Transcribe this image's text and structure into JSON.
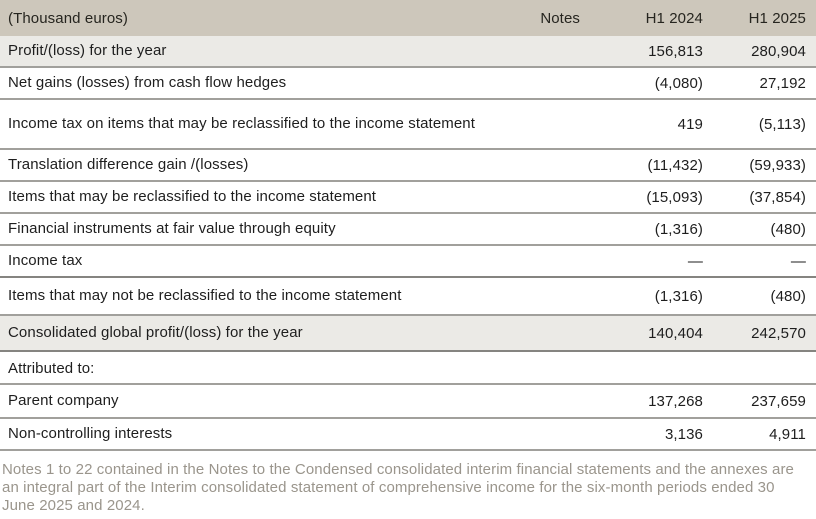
{
  "colors": {
    "header_bg": "#cdc7bb",
    "shaded_row_bg": "#ebeae6",
    "row_border": "#a1a09c",
    "section_border": "#858480",
    "text": "#1e1e1e",
    "footnote_text": "#9a958c"
  },
  "table": {
    "columns": [
      "(Thousand euros)",
      "Notes",
      "H1 2024",
      "H1 2025"
    ],
    "rows": [
      {
        "label": "Profit/(loss) for the year",
        "notes": "",
        "h1_2024": "156,813",
        "h1_2025": "280,904"
      },
      {
        "label": "Net gains (losses) from cash flow hedges",
        "notes": "",
        "h1_2024": "(4,080)",
        "h1_2025": "27,192"
      },
      {
        "label": "Income tax on items that may be reclassified to the income statement",
        "notes": "",
        "h1_2024": "419",
        "h1_2025": "(5,113)"
      },
      {
        "label": "Translation difference gain /(losses)",
        "notes": "",
        "h1_2024": "(11,432)",
        "h1_2025": "(59,933)"
      },
      {
        "label": "Items that may be reclassified to the income statement",
        "notes": "",
        "h1_2024": "(15,093)",
        "h1_2025": "(37,854)"
      },
      {
        "label": "Financial instruments at fair value through equity",
        "notes": "",
        "h1_2024": "(1,316)",
        "h1_2025": "(480)"
      },
      {
        "label": "Income tax",
        "notes": "",
        "h1_2024": "—",
        "h1_2025": "—"
      },
      {
        "label": "Items that may not be reclassified to the income statement",
        "notes": "",
        "h1_2024": "(1,316)",
        "h1_2025": "(480)"
      },
      {
        "label": "Consolidated global profit/(loss) for the year",
        "notes": "",
        "h1_2024": "140,404",
        "h1_2025": "242,570"
      },
      {
        "label": "Attributed to:",
        "notes": "",
        "h1_2024": "",
        "h1_2025": ""
      },
      {
        "label": "Parent company",
        "notes": "",
        "h1_2024": "137,268",
        "h1_2025": "237,659"
      },
      {
        "label": "Non-controlling interests",
        "notes": "",
        "h1_2024": "3,136",
        "h1_2025": "4,911"
      }
    ]
  },
  "footnote": "Notes 1 to 22 contained in the Notes to the Condensed consolidated interim financial statements and the annexes are an integral part of the Interim consolidated statement of comprehensive income for the six-month periods ended 30 June 2025 and 2024."
}
